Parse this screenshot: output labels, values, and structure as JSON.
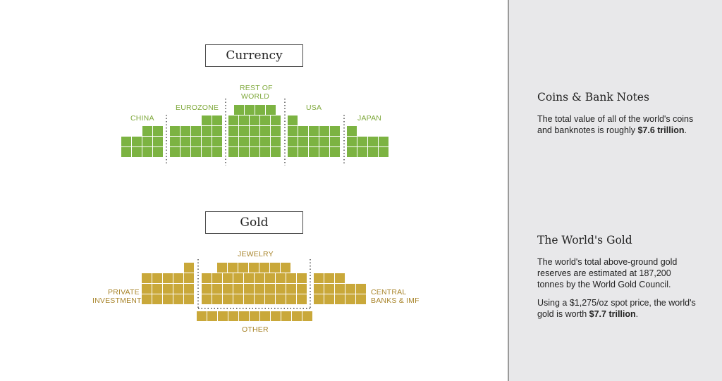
{
  "currency": {
    "title": "Currency",
    "color": "#7cb342",
    "labels": {
      "china": "CHINA",
      "eurozone": "EUROZONE",
      "rest_of_world_1": "REST OF",
      "rest_of_world_2": "WORLD",
      "usa": "USA",
      "japan": "JAPAN"
    }
  },
  "gold": {
    "title": "Gold",
    "color": "#c9a83a",
    "labels": {
      "jewelry": "JEWELRY",
      "private_1": "PRIVATE",
      "private_2": "INVESTMENT",
      "central_1": "CENTRAL",
      "central_2": "BANKS & IMF",
      "other": "OTHER"
    }
  },
  "sidebar": {
    "coins_heading": "Coins & Bank Notes",
    "coins_text_1": "The total value of all of the world's coins and banknotes is roughly ",
    "coins_value": "$7.6 trillion",
    "coins_text_2": ".",
    "gold_heading": "The World's Gold",
    "gold_text": "The world's total above-ground gold reserves are estimated at 187,200 tonnes by the World Gold Council.",
    "gold_text2_1": "Using a $1,275/oz spot price, the world's gold is worth ",
    "gold_value": "$7.7 trillion",
    "gold_text2_2": "."
  }
}
